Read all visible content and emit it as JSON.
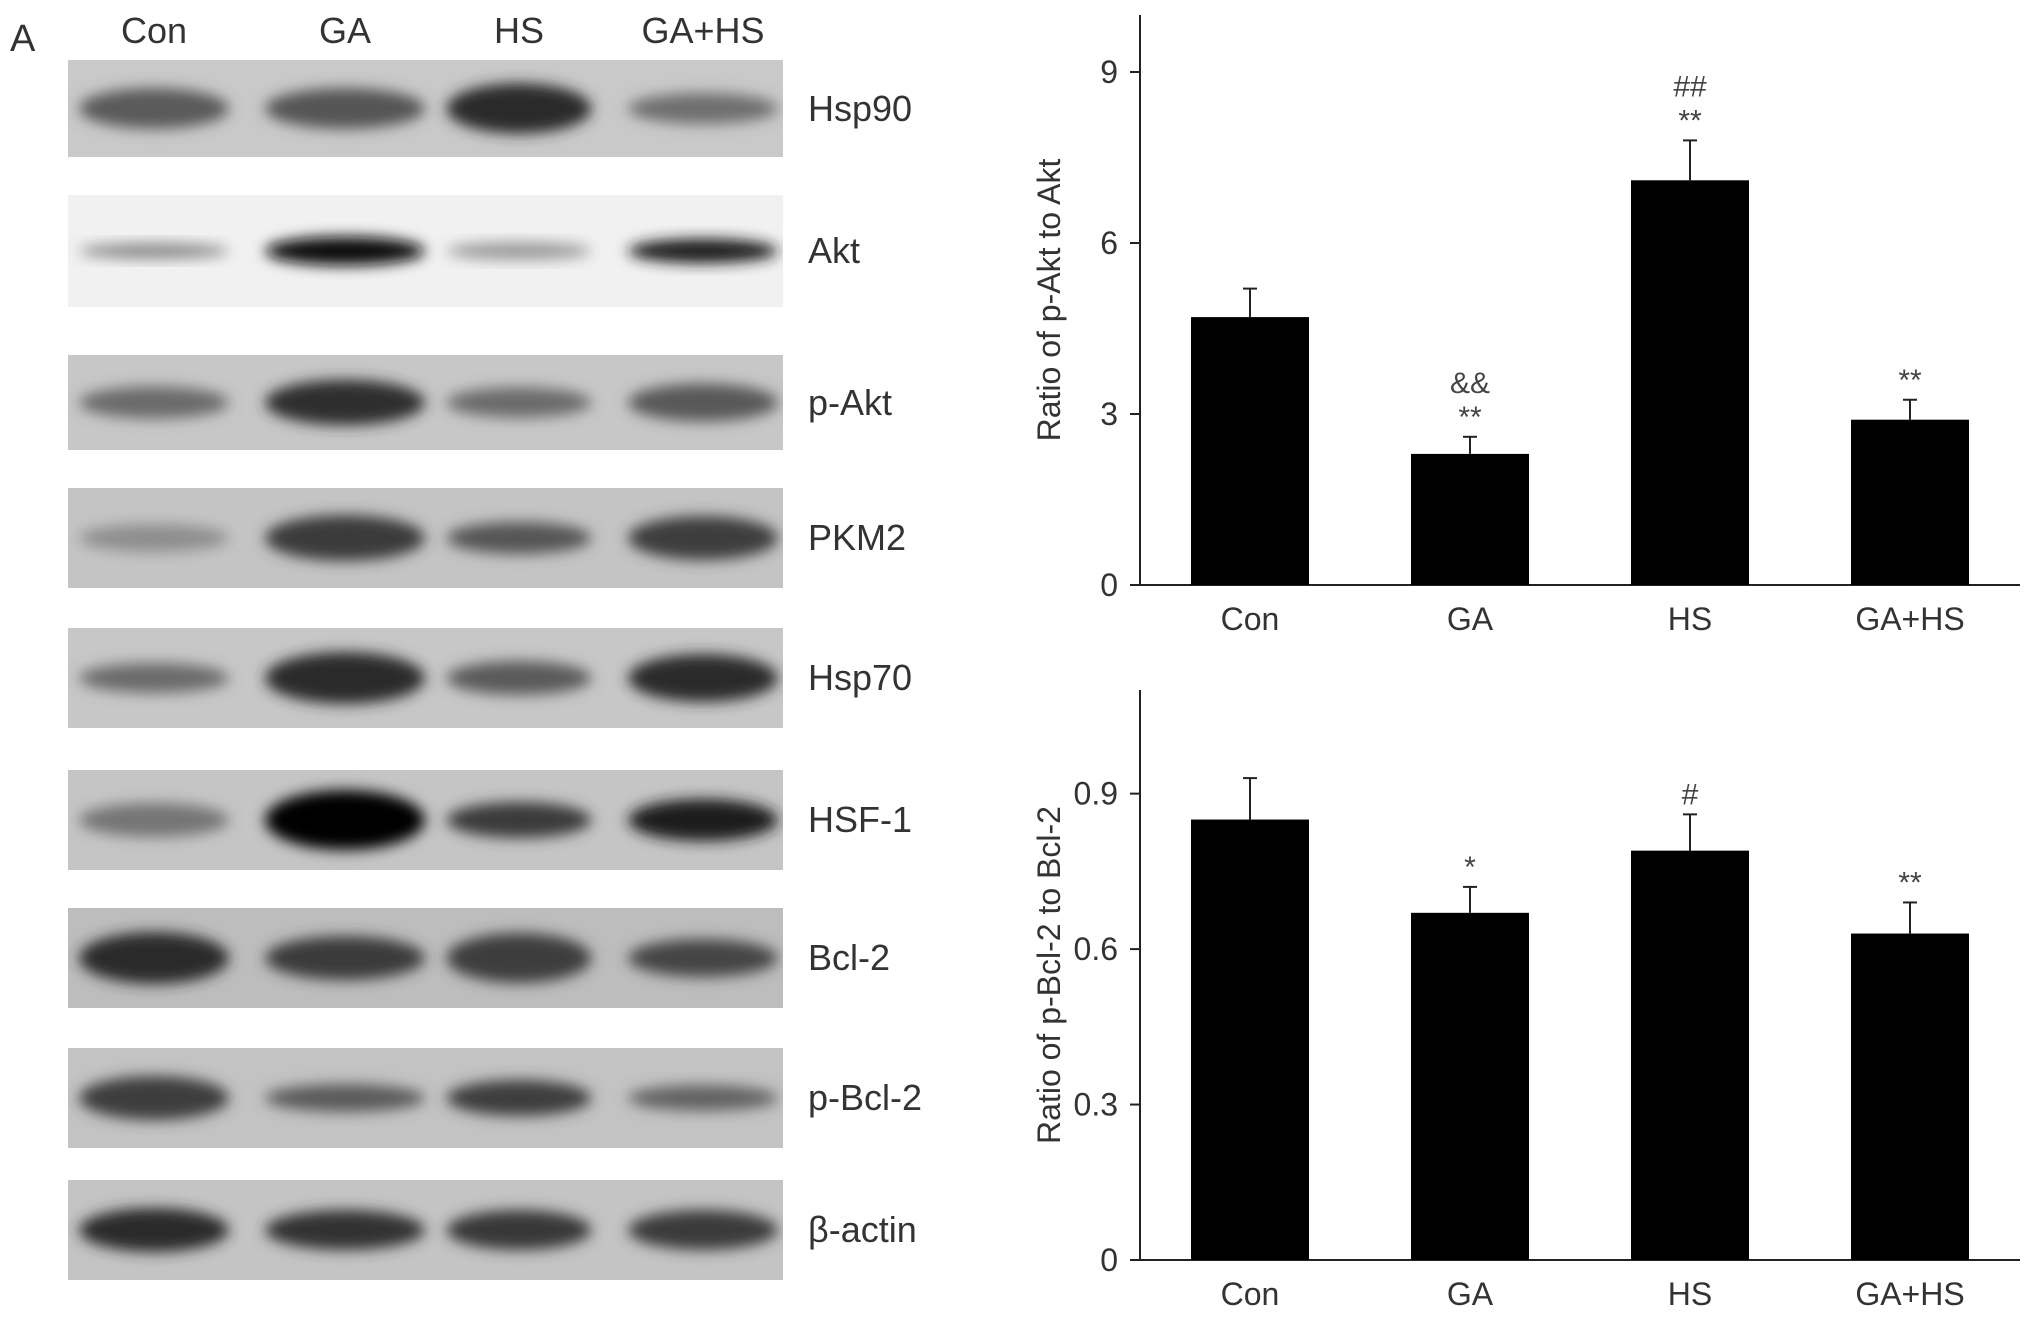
{
  "panel_letter": "A",
  "blot": {
    "lanes": [
      "Con",
      "GA",
      "HS",
      "GA+HS"
    ],
    "proteins": [
      {
        "label": "Hsp90",
        "background": "#c9c9c9",
        "band_colors": [
          "#5a5a5a",
          "#545454",
          "#2a2a2a",
          "#6e6e6e"
        ]
      },
      {
        "label": "Akt",
        "background": "#f1f1f1",
        "band_colors": [
          "#8a8a8a",
          "#0a0a0a",
          "#9a9a9a",
          "#1a1a1a"
        ]
      },
      {
        "label": "p-Akt",
        "background": "#c7c7c7",
        "band_colors": [
          "#6a6a6a",
          "#2e2e2e",
          "#6a6a6a",
          "#585858"
        ]
      },
      {
        "label": "PKM2",
        "background": "#c4c4c4",
        "band_colors": [
          "#8e8e8e",
          "#3a3a3a",
          "#555555",
          "#3e3e3e"
        ]
      },
      {
        "label": "Hsp70",
        "background": "#c7c7c7",
        "band_colors": [
          "#6a6a6a",
          "#2a2a2a",
          "#5a5a5a",
          "#2c2c2c"
        ]
      },
      {
        "label": "HSF-1",
        "background": "#c5c5c5",
        "band_colors": [
          "#747474",
          "#050505",
          "#3a3a3a",
          "#1c1c1c"
        ]
      },
      {
        "label": "Bcl-2",
        "background": "#bdbdbd",
        "band_colors": [
          "#2a2a2a",
          "#3a3a3a",
          "#3e3e3e",
          "#444444"
        ]
      },
      {
        "label": "p-Bcl-2",
        "background": "#c3c3c3",
        "band_colors": [
          "#3c3c3c",
          "#5a5a5a",
          "#3e3e3e",
          "#626262"
        ]
      },
      {
        "label": "β-actin",
        "background": "#c4c4c4",
        "band_colors": [
          "#2a2a2a",
          "#333333",
          "#383838",
          "#3a3a3a"
        ]
      }
    ]
  },
  "chart_data": [
    {
      "type": "bar",
      "categories": [
        "Con",
        "GA",
        "HS",
        "GA+HS"
      ],
      "values": [
        4.7,
        2.3,
        7.1,
        2.9
      ],
      "errors": [
        0.5,
        0.3,
        0.7,
        0.35
      ],
      "significance": [
        [],
        [
          "&&",
          "**"
        ],
        [
          "##",
          "**"
        ],
        [
          "**"
        ]
      ],
      "ylabel": "Ratio of p-Akt to Akt",
      "yticks": [
        "0",
        "3",
        "6",
        "9"
      ],
      "ylim": [
        0,
        10
      ],
      "bar_color": "#000000",
      "grid": false
    },
    {
      "type": "bar",
      "categories": [
        "Con",
        "GA",
        "HS",
        "GA+HS"
      ],
      "values": [
        0.85,
        0.67,
        0.79,
        0.63
      ],
      "errors": [
        0.08,
        0.05,
        0.07,
        0.06
      ],
      "significance": [
        [],
        [
          "*"
        ],
        [
          "#"
        ],
        [
          "**"
        ]
      ],
      "ylabel": "Ratio of p-Bcl-2 to Bcl-2",
      "yticks": [
        "0",
        "0.3",
        "0.6",
        "0.9"
      ],
      "ylim": [
        0,
        1.1
      ],
      "bar_color": "#000000",
      "grid": false
    }
  ]
}
